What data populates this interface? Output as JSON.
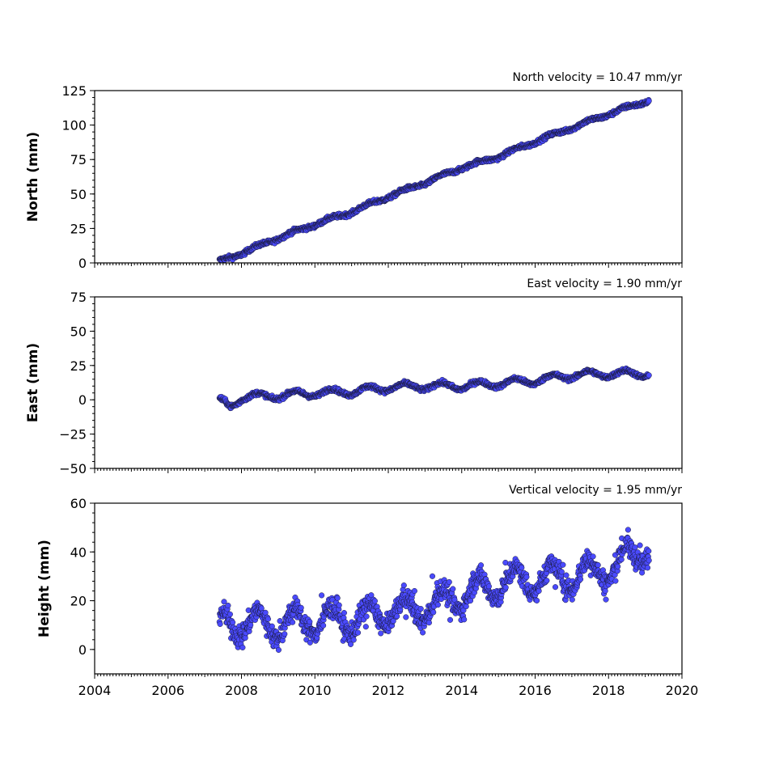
{
  "chart_data": [
    {
      "type": "scatter",
      "title": "North velocity = 10.47 mm/yr",
      "ylabel": "North (mm)",
      "xlim": [
        2004,
        2020
      ],
      "ylim": [
        0,
        125
      ],
      "yticks": [
        0,
        25,
        50,
        75,
        100,
        125
      ],
      "xticks": [],
      "series": [
        {
          "x": [
            2007.4,
            2008.0,
            2009.0,
            2010.0,
            2011.0,
            2012.0,
            2013.0,
            2014.0,
            2015.0,
            2016.0,
            2017.0,
            2018.0,
            2019.1
          ],
          "y": [
            1,
            7,
            18,
            28,
            37,
            48,
            58,
            69,
            77,
            88,
            98,
            108,
            118
          ],
          "noise": 1.5,
          "seasonal": 1.0
        }
      ]
    },
    {
      "type": "scatter",
      "title": "East velocity = 1.90 mm/yr",
      "ylabel": "East (mm)",
      "xlim": [
        2004,
        2020
      ],
      "ylim": [
        -50,
        75
      ],
      "yticks": [
        -50,
        -25,
        0,
        25,
        50,
        75
      ],
      "xticks": [],
      "series": [
        {
          "x": [
            2007.4,
            2007.7,
            2008.0,
            2009.0,
            2010.0,
            2011.0,
            2012.0,
            2013.0,
            2014.0,
            2015.0,
            2016.0,
            2017.0,
            2018.0,
            2019.1
          ],
          "y": [
            -1,
            -5,
            2,
            3,
            5,
            6,
            9,
            10,
            10,
            12,
            14,
            18,
            19,
            19
          ],
          "noise": 1.5,
          "seasonal": 2.5
        }
      ]
    },
    {
      "type": "scatter",
      "title": "Vertical velocity = 1.95 mm/yr",
      "ylabel": "Height (mm)",
      "xlim": [
        2004,
        2020
      ],
      "ylim": [
        -10,
        60
      ],
      "yticks": [
        0,
        20,
        40,
        60
      ],
      "xticks": [
        2004,
        2006,
        2008,
        2010,
        2012,
        2014,
        2016,
        2018,
        2020
      ],
      "series": [
        {
          "x": [
            2007.4,
            2008.0,
            2009.0,
            2010.0,
            2011.0,
            2012.0,
            2013.0,
            2014.0,
            2015.0,
            2016.0,
            2017.0,
            2018.0,
            2019.1
          ],
          "y": [
            10,
            11,
            10,
            12,
            12,
            15,
            17,
            22,
            27,
            29,
            30,
            33,
            42
          ],
          "noise": 4.5,
          "seasonal": 5.5
        }
      ]
    }
  ],
  "colors": {
    "marker_fill": "#4a4aff",
    "marker_edge": "#1a1a3a",
    "axis": "#000000"
  }
}
